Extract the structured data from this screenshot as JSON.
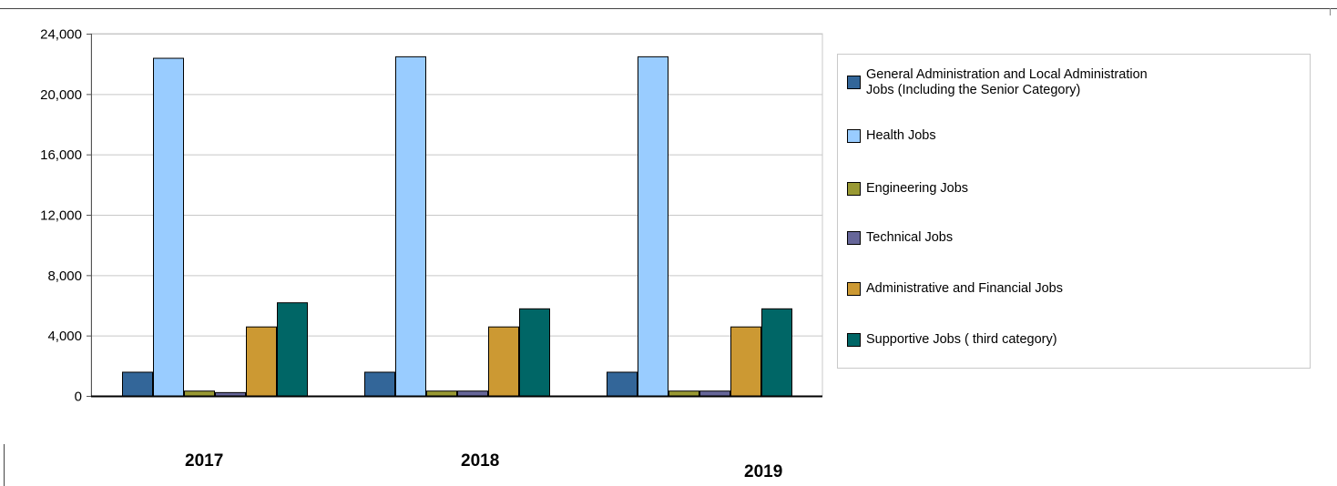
{
  "chart_data": {
    "type": "bar",
    "categories": [
      "2017",
      "2018",
      "2019"
    ],
    "ylim": [
      0,
      24000
    ],
    "yticks": [
      0,
      4000,
      8000,
      12000,
      16000,
      20000,
      24000
    ],
    "ytick_labels": [
      "0",
      "4,000",
      "8,000",
      "12,000",
      "16,000",
      "20,000",
      "24,000"
    ],
    "grid": true,
    "legend_position": "right",
    "series": [
      {
        "name": "General Administration and Local Administration Jobs (Including the Senior Category)",
        "color": "#336699",
        "values": [
          1600,
          1600,
          1600
        ]
      },
      {
        "name": "Health Jobs",
        "color": "#99ccff",
        "values": [
          22400,
          22500,
          22500
        ]
      },
      {
        "name": "Engineering Jobs",
        "color": "#999933",
        "values": [
          350,
          350,
          350
        ]
      },
      {
        "name": "Technical Jobs",
        "color": "#666699",
        "values": [
          250,
          350,
          350
        ]
      },
      {
        "name": "Administrative and Financial Jobs",
        "color": "#cc9933",
        "values": [
          4600,
          4600,
          4600
        ]
      },
      {
        "name": "Supportive Jobs ( third category)",
        "color": "#006666",
        "values": [
          6200,
          5800,
          5800
        ]
      }
    ]
  },
  "legend": {
    "items": [
      {
        "label": "General Administration and Local Administration Jobs (Including the Senior Category)",
        "color": "#336699"
      },
      {
        "label": "Health Jobs",
        "color": "#99ccff"
      },
      {
        "label": "Engineering Jobs",
        "color": "#999933"
      },
      {
        "label": "Technical Jobs",
        "color": "#666699"
      },
      {
        "label": "Administrative and Financial Jobs",
        "color": "#cc9933"
      },
      {
        "label": "Supportive Jobs ( third category)",
        "color": "#006666"
      }
    ]
  },
  "x_labels": [
    "2017",
    "2018",
    "2019"
  ]
}
